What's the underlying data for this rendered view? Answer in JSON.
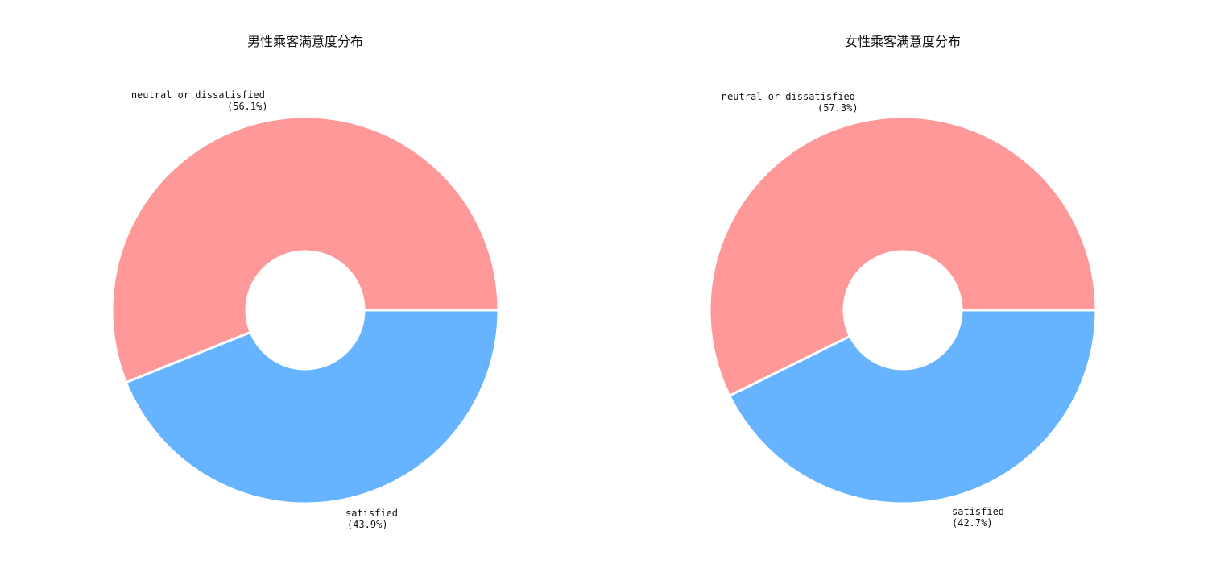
{
  "chart_data": [
    {
      "type": "pie",
      "title": "男性乘客满意度分布",
      "categories": [
        "neutral or dissatisfied",
        "satisfied"
      ],
      "values": [
        56.1,
        43.9
      ],
      "labels": [
        "neutral or dissatisfied\n(56.1%)",
        "satisfied\n(43.9%)"
      ],
      "colors": [
        "#ff9999",
        "#66b3ff"
      ],
      "donut": true
    },
    {
      "type": "pie",
      "title": "女性乘客满意度分布",
      "categories": [
        "neutral or dissatisfied",
        "satisfied"
      ],
      "values": [
        57.3,
        42.7
      ],
      "labels": [
        "neutral or dissatisfied\n(57.3%)",
        "satisfied\n(42.7%)"
      ],
      "colors": [
        "#ff9999",
        "#66b3ff"
      ],
      "donut": true
    }
  ]
}
